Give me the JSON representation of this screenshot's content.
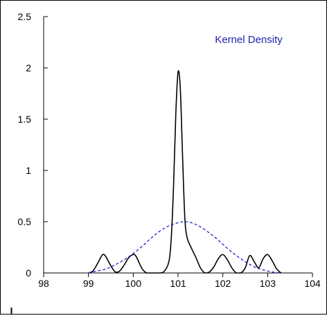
{
  "chart_data": {
    "type": "line",
    "title": "",
    "xlabel": "",
    "ylabel": "",
    "xlim": [
      98,
      104
    ],
    "ylim": [
      0,
      2.5
    ],
    "x_ticks": [
      98,
      99,
      100,
      101,
      102,
      103,
      104
    ],
    "y_ticks": [
      0,
      0.5,
      1,
      1.5,
      2,
      2.5
    ],
    "x_tick_labels": [
      "98",
      "99",
      "100",
      "101",
      "102",
      "103",
      "104"
    ],
    "y_tick_labels": [
      "0",
      "0.5",
      "1",
      "1.5",
      "2",
      "2.5"
    ],
    "grid": false,
    "legend_position": "top-right",
    "annotation": "Kernel Density",
    "annotation_color": "#1f1fa8",
    "series": [
      {
        "style": "solid",
        "color": "#000000",
        "x": [
          99.0,
          99.1,
          99.2,
          99.3,
          99.35,
          99.4,
          99.5,
          99.6,
          99.7,
          99.8,
          99.9,
          100.0,
          100.05,
          100.1,
          100.2,
          100.3,
          100.4,
          100.5,
          100.6,
          100.7,
          100.8,
          100.85,
          100.9,
          100.95,
          101.0,
          101.05,
          101.1,
          101.15,
          101.2,
          101.3,
          101.4,
          101.5,
          101.6,
          101.7,
          101.8,
          101.9,
          102.0,
          102.1,
          102.2,
          102.3,
          102.4,
          102.5,
          102.6,
          102.7,
          102.8,
          102.9,
          103.0,
          103.1,
          103.2,
          103.3
        ],
        "y": [
          0.0,
          0.02,
          0.09,
          0.17,
          0.18,
          0.15,
          0.07,
          0.01,
          0.02,
          0.08,
          0.15,
          0.18,
          0.17,
          0.13,
          0.04,
          0.0,
          0.0,
          0.0,
          0.0,
          0.02,
          0.12,
          0.35,
          0.85,
          1.55,
          1.96,
          1.8,
          1.15,
          0.55,
          0.35,
          0.24,
          0.15,
          0.05,
          0.0,
          0.01,
          0.06,
          0.14,
          0.18,
          0.13,
          0.05,
          0.0,
          0.0,
          0.05,
          0.17,
          0.11,
          0.05,
          0.14,
          0.18,
          0.12,
          0.04,
          0.0
        ]
      },
      {
        "style": "dashed",
        "color": "#1f1fd0",
        "x": [
          99.0,
          99.2,
          99.4,
          99.6,
          99.8,
          100.0,
          100.2,
          100.4,
          100.6,
          100.8,
          101.0,
          101.15,
          101.3,
          101.5,
          101.7,
          101.9,
          102.1,
          102.3,
          102.5,
          102.7,
          102.9,
          103.1,
          103.3
        ],
        "y": [
          0.0,
          0.02,
          0.04,
          0.08,
          0.13,
          0.19,
          0.26,
          0.34,
          0.41,
          0.46,
          0.49,
          0.5,
          0.49,
          0.45,
          0.39,
          0.32,
          0.24,
          0.17,
          0.11,
          0.06,
          0.03,
          0.01,
          0.0
        ]
      }
    ]
  }
}
